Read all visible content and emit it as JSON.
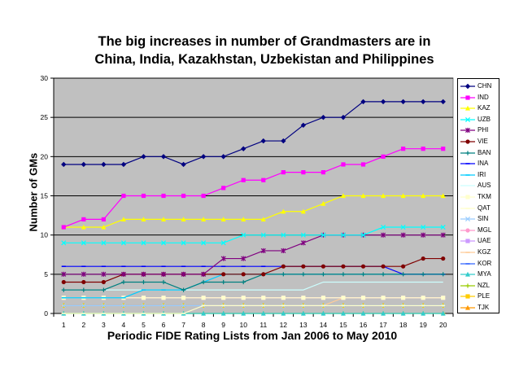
{
  "chart_data": {
    "type": "line",
    "title": [
      "The big increases in number of Grandmasters are in",
      "China, India, Kazakhstan, Uzbekistan and Philippines"
    ],
    "xlabel": "Periodic FIDE Rating Lists from Jan 2006 to May 2010",
    "ylabel": "Number of GMs",
    "ylim": [
      0,
      30
    ],
    "yticks": [
      "0",
      "5",
      "10",
      "15",
      "20",
      "25",
      "30"
    ],
    "categories": [
      "1",
      "2",
      "3",
      "4",
      "5",
      "6",
      "7",
      "8",
      "9",
      "10",
      "11",
      "12",
      "13",
      "14",
      "15",
      "16",
      "17",
      "18",
      "19",
      "20"
    ],
    "grid": "horizontal",
    "legend_position": "right",
    "plot_background": "#c0c0c0",
    "series": [
      {
        "name": "CHN",
        "color": "#000080",
        "marker": "diamond",
        "values": [
          19,
          19,
          19,
          19,
          20,
          20,
          19,
          20,
          20,
          21,
          22,
          22,
          24,
          25,
          25,
          27,
          27,
          27,
          27,
          27
        ]
      },
      {
        "name": "IND",
        "color": "#ff00ff",
        "marker": "square",
        "values": [
          11,
          12,
          12,
          15,
          15,
          15,
          15,
          15,
          16,
          17,
          17,
          18,
          18,
          18,
          19,
          19,
          20,
          21,
          21,
          21
        ]
      },
      {
        "name": "KAZ",
        "color": "#ffff00",
        "marker": "triangle",
        "values": [
          11,
          11,
          11,
          12,
          12,
          12,
          12,
          12,
          12,
          12,
          12,
          13,
          13,
          14,
          15,
          15,
          15,
          15,
          15,
          15
        ]
      },
      {
        "name": "UZB",
        "color": "#00ffff",
        "marker": "x",
        "values": [
          9,
          9,
          9,
          9,
          9,
          9,
          9,
          9,
          9,
          10,
          10,
          10,
          10,
          10,
          10,
          10,
          11,
          11,
          11,
          11
        ]
      },
      {
        "name": "PHI",
        "color": "#800080",
        "marker": "star",
        "values": [
          5,
          5,
          5,
          5,
          5,
          5,
          5,
          5,
          7,
          7,
          8,
          8,
          9,
          10,
          10,
          10,
          10,
          10,
          10,
          10
        ]
      },
      {
        "name": "VIE",
        "color": "#800000",
        "marker": "circle",
        "values": [
          4,
          4,
          4,
          5,
          5,
          5,
          5,
          5,
          5,
          5,
          5,
          6,
          6,
          6,
          6,
          6,
          6,
          6,
          7,
          7
        ]
      },
      {
        "name": "BAN",
        "color": "#008080",
        "marker": "plus",
        "values": [
          3,
          3,
          3,
          4,
          4,
          4,
          3,
          4,
          4,
          4,
          5,
          5,
          5,
          5,
          5,
          5,
          5,
          5,
          5,
          5
        ]
      },
      {
        "name": "INA",
        "color": "#0000ff",
        "marker": "dash",
        "values": [
          6,
          6,
          6,
          6,
          6,
          6,
          6,
          6,
          6,
          6,
          6,
          6,
          6,
          6,
          6,
          6,
          6,
          5,
          5,
          5
        ]
      },
      {
        "name": "IRI",
        "color": "#00ccff",
        "marker": "dash",
        "values": [
          2,
          2,
          2,
          2,
          3,
          3,
          3,
          4,
          5,
          5,
          5,
          5,
          5,
          5,
          5,
          5,
          5,
          5,
          5,
          5
        ]
      },
      {
        "name": "AUS",
        "color": "#ccffff",
        "marker": "none",
        "values": [
          3,
          3,
          3,
          3,
          3,
          3,
          3,
          3,
          3,
          3,
          3,
          3,
          3,
          4,
          4,
          4,
          4,
          4,
          4,
          4
        ]
      },
      {
        "name": "TKM",
        "color": "#ffffcc",
        "marker": "square",
        "values": [
          2,
          2,
          2,
          2,
          2,
          2,
          2,
          2,
          2,
          2,
          2,
          2,
          2,
          2,
          2,
          2,
          2,
          2,
          2,
          2
        ]
      },
      {
        "name": "QAT",
        "color": "#ffffcc",
        "marker": "dash",
        "values": [
          0,
          0,
          0,
          0,
          0,
          0,
          0,
          1,
          1,
          1,
          1,
          1,
          1,
          1,
          1,
          1,
          1,
          1,
          1,
          1
        ]
      },
      {
        "name": "SIN",
        "color": "#99ccff",
        "marker": "x",
        "values": [
          1,
          1,
          1,
          1,
          1,
          1,
          1,
          1,
          1,
          1,
          1,
          1,
          1,
          1,
          1,
          1,
          1,
          1,
          1,
          1
        ]
      },
      {
        "name": "MGL",
        "color": "#ff99cc",
        "marker": "circle",
        "values": [
          2,
          2,
          2,
          2,
          2,
          2,
          2,
          2,
          2,
          2,
          2,
          2,
          2,
          2,
          2,
          2,
          2,
          2,
          2,
          2
        ]
      },
      {
        "name": "UAE",
        "color": "#cc99ff",
        "marker": "square",
        "values": [
          2,
          2,
          2,
          2,
          2,
          2,
          2,
          2,
          2,
          2,
          2,
          2,
          2,
          2,
          2,
          2,
          2,
          2,
          2,
          2
        ]
      },
      {
        "name": "KGZ",
        "color": "#ffcc99",
        "marker": "dash",
        "values": [
          1,
          1,
          1,
          1,
          1,
          1,
          1,
          1,
          1,
          1,
          1,
          1,
          1,
          1,
          2,
          2,
          2,
          2,
          2,
          2
        ]
      },
      {
        "name": "KOR",
        "color": "#3366ff",
        "marker": "dash",
        "values": [
          1,
          1,
          1,
          1,
          1,
          1,
          1,
          1,
          1,
          1,
          1,
          1,
          1,
          1,
          1,
          1,
          1,
          1,
          1,
          1
        ]
      },
      {
        "name": "MYA",
        "color": "#33cccc",
        "marker": "triangle",
        "values": [
          0,
          0,
          0,
          0,
          0,
          0,
          0,
          0,
          0,
          0,
          0,
          0,
          0,
          0,
          0,
          0,
          0,
          0,
          0,
          0
        ]
      },
      {
        "name": "NZL",
        "color": "#99cc00",
        "marker": "plus",
        "values": [
          0,
          0,
          0,
          0,
          0,
          0,
          0,
          0,
          0,
          0,
          0,
          0,
          0,
          0,
          0,
          0,
          0,
          0,
          0,
          0
        ]
      },
      {
        "name": "PLE",
        "color": "#ffcc00",
        "marker": "square",
        "values": [
          1,
          1,
          1,
          1,
          1,
          1,
          1,
          1,
          1,
          1,
          1,
          1,
          1,
          1,
          1,
          1,
          1,
          1,
          1,
          1
        ]
      },
      {
        "name": "TJK",
        "color": "#ff9900",
        "marker": "triangle",
        "values": [
          1,
          1,
          1,
          1,
          1,
          1,
          1,
          1,
          1,
          1,
          1,
          1,
          1,
          1,
          1,
          1,
          1,
          1,
          1,
          1
        ]
      }
    ]
  }
}
